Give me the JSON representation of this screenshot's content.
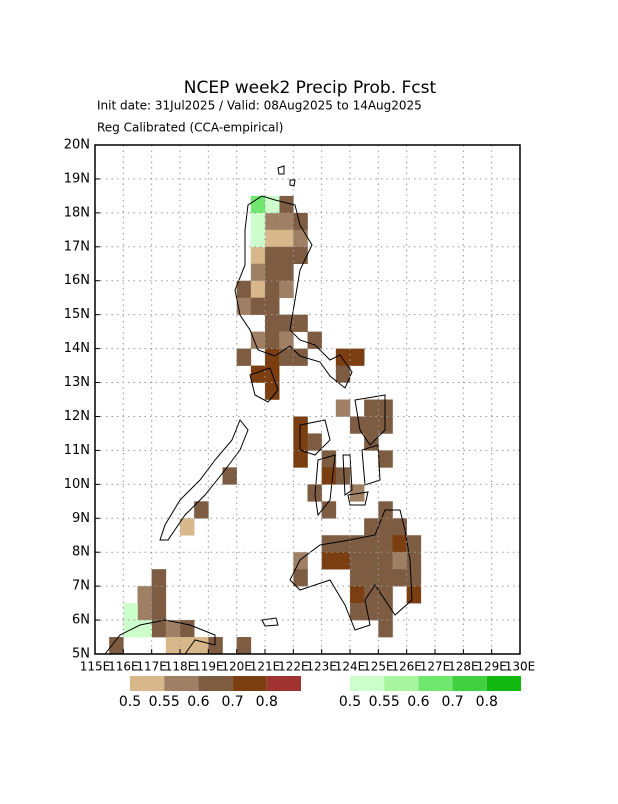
{
  "chart_data": {
    "type": "grid-map",
    "title": "NCEP week2 Precip Prob. Fcst",
    "subtitle": "Init date: 31Jul2025 / Valid: 08Aug2025 to 14Aug2025",
    "note": "Reg Calibrated (CCA-empirical)",
    "xlim": [
      115,
      130
    ],
    "ylim": [
      5,
      20
    ],
    "xticks": [
      {
        "value": 115,
        "label": "115E"
      },
      {
        "value": 116,
        "label": "116E"
      },
      {
        "value": 117,
        "label": "117E"
      },
      {
        "value": 118,
        "label": "118E"
      },
      {
        "value": 119,
        "label": "119E"
      },
      {
        "value": 120,
        "label": "120E"
      },
      {
        "value": 121,
        "label": "121E"
      },
      {
        "value": 122,
        "label": "122E"
      },
      {
        "value": 123,
        "label": "123E"
      },
      {
        "value": 124,
        "label": "124E"
      },
      {
        "value": 125,
        "label": "125E"
      },
      {
        "value": 126,
        "label": "126E"
      },
      {
        "value": 127,
        "label": "127E"
      },
      {
        "value": 128,
        "label": "128E"
      },
      {
        "value": 129,
        "label": "129E"
      },
      {
        "value": 130,
        "label": "130E"
      }
    ],
    "yticks": [
      {
        "value": 5,
        "label": "5N"
      },
      {
        "value": 6,
        "label": "6N"
      },
      {
        "value": 7,
        "label": "7N"
      },
      {
        "value": 8,
        "label": "8N"
      },
      {
        "value": 9,
        "label": "9N"
      },
      {
        "value": 10,
        "label": "10N"
      },
      {
        "value": 11,
        "label": "11N"
      },
      {
        "value": 12,
        "label": "12N"
      },
      {
        "value": 13,
        "label": "13N"
      },
      {
        "value": 14,
        "label": "14N"
      },
      {
        "value": 15,
        "label": "15N"
      },
      {
        "value": 16,
        "label": "16N"
      },
      {
        "value": 17,
        "label": "17N"
      },
      {
        "value": 18,
        "label": "18N"
      },
      {
        "value": 19,
        "label": "19N"
      },
      {
        "value": 20,
        "label": "20N"
      }
    ],
    "grid": true,
    "cell_size": 0.5,
    "levels": [
      0.5,
      0.55,
      0.6,
      0.7,
      0.8
    ],
    "below_colors": [
      "#d8b88a",
      "#a08064",
      "#7d5c42",
      "#7a3e10",
      "#a03232"
    ],
    "above_colors": [
      "#ccffcc",
      "#a8f5a0",
      "#70e870",
      "#40d040",
      "#10b810"
    ],
    "above": {
      "lon": [
        120.5,
        121,
        120.5,
        120.5,
        116,
        116,
        116.5
      ],
      "lat": [
        18,
        18,
        17.5,
        17,
        6,
        5.5,
        5.5
      ],
      "values": [
        0.6,
        0.5,
        0.5,
        0.5,
        0.5,
        0.5,
        0.5
      ]
    },
    "below": {
      "lon": [
        121.5,
        121,
        121.5,
        122,
        121,
        121.5,
        122,
        120.5,
        121,
        121.5,
        122,
        120.5,
        121,
        121.5,
        120,
        120.5,
        121,
        121.5,
        120,
        120.5,
        121,
        121,
        121.5,
        122,
        120.5,
        121,
        121.5,
        122.5,
        120,
        121,
        121.5,
        122,
        123.5,
        124,
        120.5,
        121,
        123.5,
        121,
        123.5,
        124.5,
        125,
        122,
        124,
        124.5,
        125,
        122,
        122.5,
        124.5,
        122,
        123,
        125,
        123,
        123.5,
        119.5,
        122.5,
        124,
        123,
        125,
        118.5,
        118,
        124.5,
        125,
        125.5,
        123,
        123.5,
        124,
        124.5,
        125,
        125.5,
        126,
        122,
        123,
        123.5,
        124,
        124.5,
        125,
        125.5,
        126,
        117,
        122,
        124,
        124.5,
        125,
        125.5,
        126,
        116.5,
        117,
        124,
        124.5,
        125,
        126,
        116.5,
        117,
        124,
        124.5,
        125,
        116.5,
        117,
        117.5,
        118,
        125,
        115.5,
        117.5,
        118,
        118.5,
        119,
        120
      ],
      "lat": [
        18,
        17.5,
        17.5,
        17.5,
        17,
        17,
        17,
        16.5,
        16.5,
        16.5,
        16.5,
        16,
        16,
        16,
        15.5,
        15.5,
        15.5,
        15.5,
        15,
        15,
        15,
        14.5,
        14.5,
        14.5,
        14,
        14,
        14,
        14,
        13.5,
        13.5,
        13.5,
        13.5,
        13.5,
        13.5,
        13,
        13,
        13,
        12.5,
        12,
        12,
        12,
        11.5,
        11.5,
        11.5,
        11.5,
        11,
        11,
        11,
        10.5,
        10.5,
        10.5,
        10,
        10,
        10,
        9.5,
        9.5,
        9,
        9,
        9,
        8.5,
        8.5,
        8.5,
        8.5,
        8,
        8,
        8,
        8,
        8,
        8,
        8,
        7.5,
        7.5,
        7.5,
        7.5,
        7.5,
        7.5,
        7.5,
        7.5,
        7,
        7,
        7,
        7,
        7,
        7,
        7,
        6.5,
        6.5,
        6.5,
        6.5,
        6.5,
        6.5,
        6,
        6,
        6,
        6,
        6,
        5.5,
        5.5,
        5.5,
        5.5,
        5.5,
        5,
        5,
        5,
        5,
        5,
        5
      ],
      "values": [
        0.6,
        0.55,
        0.55,
        0.6,
        0.5,
        0.5,
        0.55,
        0.5,
        0.6,
        0.6,
        0.6,
        0.55,
        0.6,
        0.6,
        0.6,
        0.5,
        0.6,
        0.55,
        0.55,
        0.6,
        0.6,
        0.6,
        0.6,
        0.6,
        0.55,
        0.6,
        0.55,
        0.6,
        0.6,
        0.7,
        0.6,
        0.6,
        0.7,
        0.7,
        0.7,
        0.7,
        0.6,
        0.7,
        0.55,
        0.6,
        0.6,
        0.7,
        0.6,
        0.6,
        0.6,
        0.7,
        0.6,
        0.6,
        0.7,
        0.6,
        0.6,
        0.7,
        0.6,
        0.6,
        0.6,
        0.55,
        0.6,
        0.6,
        0.6,
        0.5,
        0.6,
        0.6,
        0.6,
        0.6,
        0.6,
        0.6,
        0.6,
        0.6,
        0.7,
        0.6,
        0.55,
        0.7,
        0.7,
        0.6,
        0.6,
        0.6,
        0.55,
        0.6,
        0.6,
        0.6,
        0.6,
        0.6,
        0.6,
        0.6,
        0.6,
        0.55,
        0.6,
        0.7,
        0.6,
        0.6,
        0.7,
        0.55,
        0.6,
        0.6,
        0.6,
        0.6,
        0.5,
        0.6,
        0.55,
        0.6,
        0.6,
        0.6,
        0.5,
        0.5,
        0.5,
        0.6,
        0.6
      ]
    }
  }
}
